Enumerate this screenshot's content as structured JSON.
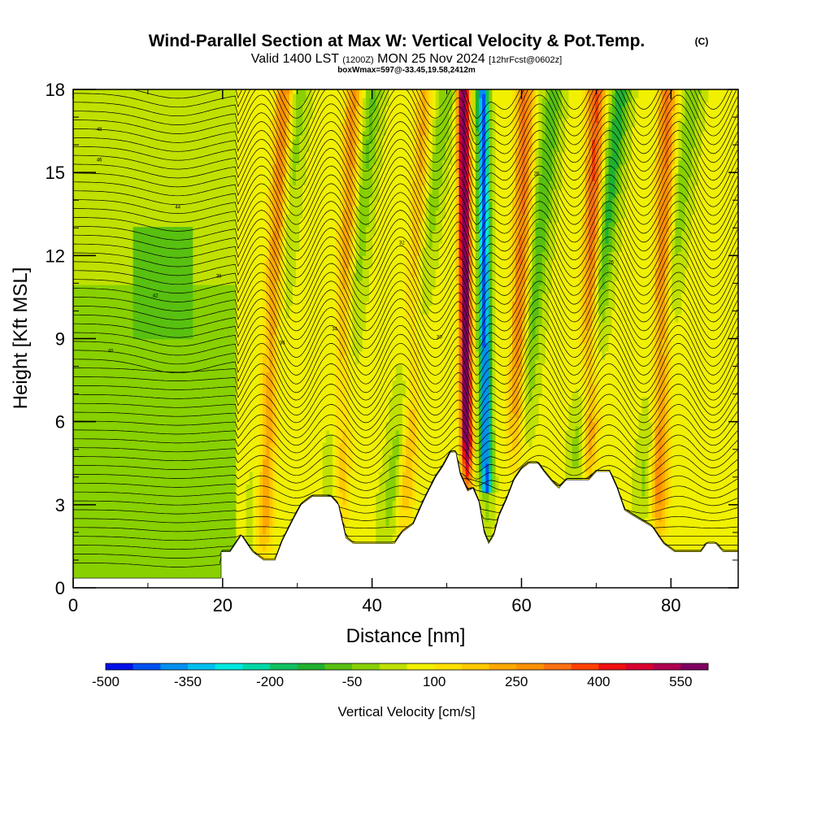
{
  "header": {
    "title": "Wind-Parallel Section at Max W: Vertical Velocity & Pot.Temp.",
    "copyright": "(C)",
    "valid_prefix": "Valid 1400 LST",
    "valid_z": "(1200Z)",
    "valid_date": "MON 25 Nov 2024",
    "forecast": "[12hrFcst@0602z]",
    "box_info": "boxWmax=597@-33.45,19.58,2412m"
  },
  "chart_data": {
    "type": "heatmap",
    "title": "Wind-Parallel Section at Max W: Vertical Velocity & Pot.Temp.",
    "xlabel": "Distance [nm]",
    "ylabel": "Height [Kft MSL]",
    "xlim": [
      0,
      89
    ],
    "ylim": [
      0,
      18
    ],
    "x_ticks": [
      0,
      20,
      40,
      60,
      80
    ],
    "y_ticks": [
      0,
      3,
      6,
      9,
      12,
      15,
      18
    ],
    "colorbar": {
      "label": "Vertical Velocity [cm/s]",
      "min": -500,
      "max": 600,
      "step": 50,
      "tick_labels": [
        "-500",
        "-350",
        "-200",
        "-50",
        "100",
        "250",
        "400",
        "550"
      ],
      "tick_values": [
        -500,
        -350,
        -200,
        -50,
        100,
        250,
        400,
        550
      ],
      "colors": [
        "#0010e8",
        "#0050f0",
        "#0090f0",
        "#00c0f0",
        "#00e8e0",
        "#00d8a8",
        "#10c060",
        "#20b030",
        "#58c010",
        "#88d000",
        "#c0e000",
        "#f0f000",
        "#ffe000",
        "#ffc800",
        "#ffa800",
        "#ff9000",
        "#ff7010",
        "#ff4000",
        "#f01010",
        "#d80030",
        "#b00050",
        "#800060"
      ]
    },
    "terrain_kft": [
      [
        0,
        0.35
      ],
      [
        19.8,
        0.35
      ],
      [
        19.8,
        1.3
      ],
      [
        21.0,
        1.3
      ],
      [
        22.5,
        1.9
      ],
      [
        24.0,
        1.3
      ],
      [
        25.5,
        1.0
      ],
      [
        27.0,
        1.0
      ],
      [
        28.0,
        1.7
      ],
      [
        29.5,
        2.5
      ],
      [
        30.5,
        3.0
      ],
      [
        32.0,
        3.3
      ],
      [
        34.5,
        3.3
      ],
      [
        35.5,
        3.0
      ],
      [
        36.5,
        1.8
      ],
      [
        37.5,
        1.6
      ],
      [
        40.0,
        1.6
      ],
      [
        43.0,
        1.6
      ],
      [
        44.0,
        2.0
      ],
      [
        45.5,
        2.3
      ],
      [
        47.0,
        3.2
      ],
      [
        48.5,
        4.0
      ],
      [
        49.5,
        4.4
      ],
      [
        50.5,
        4.9
      ],
      [
        51.2,
        4.9
      ],
      [
        51.8,
        4.1
      ],
      [
        52.8,
        3.5
      ],
      [
        53.5,
        3.6
      ],
      [
        54.3,
        3.1
      ],
      [
        55.0,
        2.0
      ],
      [
        55.6,
        1.6
      ],
      [
        56.3,
        1.9
      ],
      [
        57.0,
        2.6
      ],
      [
        58.0,
        3.2
      ],
      [
        59.0,
        3.9
      ],
      [
        60.0,
        4.3
      ],
      [
        61.0,
        4.5
      ],
      [
        62.2,
        4.5
      ],
      [
        63.0,
        4.2
      ],
      [
        64.2,
        3.8
      ],
      [
        65.0,
        3.6
      ],
      [
        66.0,
        3.9
      ],
      [
        69.0,
        3.9
      ],
      [
        70.0,
        4.2
      ],
      [
        71.8,
        4.2
      ],
      [
        72.8,
        3.6
      ],
      [
        73.8,
        2.8
      ],
      [
        75.0,
        2.6
      ],
      [
        77.5,
        2.2
      ],
      [
        79.0,
        1.6
      ],
      [
        80.5,
        1.3
      ],
      [
        84.0,
        1.3
      ],
      [
        84.8,
        1.6
      ],
      [
        86.0,
        1.6
      ],
      [
        87.0,
        1.3
      ],
      [
        89.0,
        1.3
      ]
    ],
    "updraft_bands": [
      {
        "x_low": 25.0,
        "x_high": 28.3,
        "w_peak": 250
      },
      {
        "x_low": 35.2,
        "x_high": 37.5,
        "w_peak": 200
      },
      {
        "x_low": 44.0,
        "x_high": 47.0,
        "w_peak": 150
      },
      {
        "x_low": 52.8,
        "x_high": 52.2,
        "w_peak": 597
      },
      {
        "x_low": 59.0,
        "x_high": 60.5,
        "w_peak": 250
      },
      {
        "x_low": 68.5,
        "x_high": 70.0,
        "w_peak": 300
      },
      {
        "x_low": 78.0,
        "x_high": 79.5,
        "w_peak": 250
      }
    ],
    "downdraft_bands": [
      {
        "x_low": 23.8,
        "x_high": 30.2,
        "w_peak": -100
      },
      {
        "x_low": 33.5,
        "x_high": 40.2,
        "w_peak": -120
      },
      {
        "x_low": 41.0,
        "x_high": 50.0,
        "w_peak": -100
      },
      {
        "x_low": 55.4,
        "x_high": 54.8,
        "w_peak": -480
      },
      {
        "x_low": 58.0,
        "x_high": 64.3,
        "w_peak": -150
      },
      {
        "x_low": 66.0,
        "x_high": 73.3,
        "w_peak": -200
      },
      {
        "x_low": 75.0,
        "x_high": 83.0,
        "w_peak": -100
      }
    ],
    "isentrope_labels": [
      "48",
      "46",
      "44",
      "42",
      "40",
      "38",
      "36",
      "34",
      "32",
      "30",
      "28",
      "26"
    ]
  }
}
